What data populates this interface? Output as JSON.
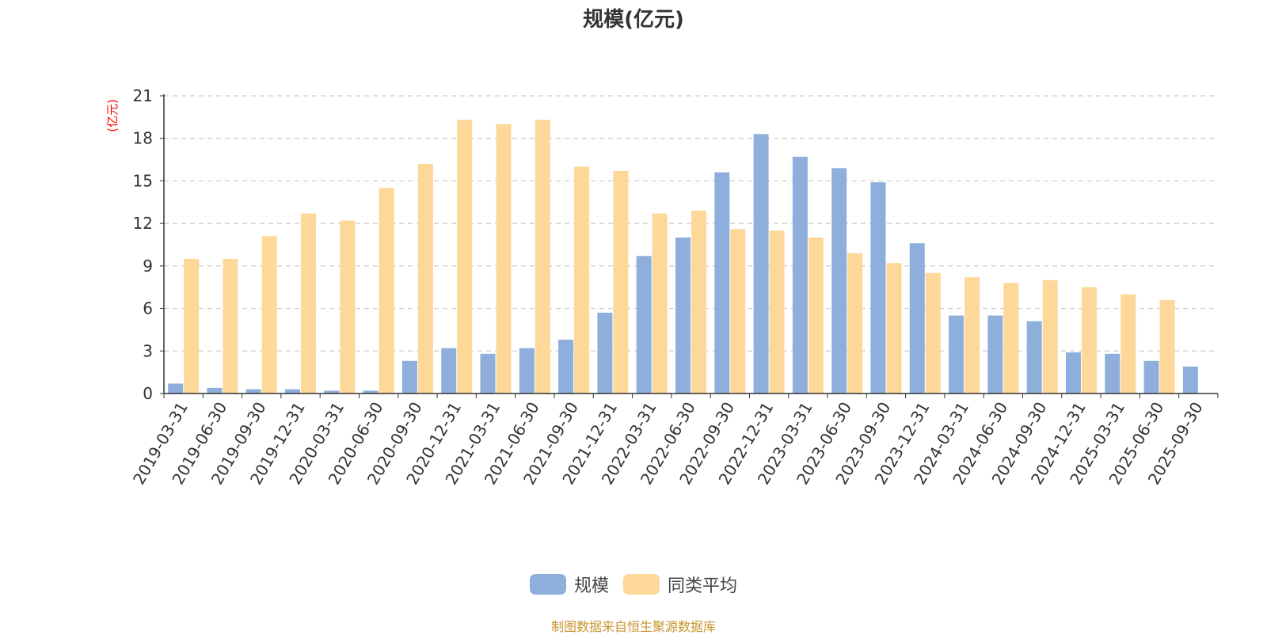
{
  "chart_data": {
    "type": "bar",
    "title": "规模(亿元)",
    "ylabel": "(亿元)",
    "ylim": [
      0,
      21
    ],
    "yticks": [
      0,
      3,
      6,
      9,
      12,
      15,
      18,
      21
    ],
    "grid": true,
    "legend_position": "bottom",
    "categories": [
      "2019-03-31",
      "2019-06-30",
      "2019-09-30",
      "2019-12-31",
      "2020-03-31",
      "2020-06-30",
      "2020-09-30",
      "2020-12-31",
      "2021-03-31",
      "2021-06-30",
      "2021-09-30",
      "2021-12-31",
      "2022-03-31",
      "2022-06-30",
      "2022-09-30",
      "2022-12-31",
      "2023-03-31",
      "2023-06-30",
      "2023-09-30",
      "2023-12-31",
      "2024-03-31",
      "2024-06-30",
      "2024-09-30",
      "2024-12-31",
      "2025-03-31",
      "2025-06-30",
      "2025-09-30"
    ],
    "series": [
      {
        "name": "规模",
        "color": "#8eaedb",
        "values": [
          0.7,
          0.4,
          0.3,
          0.3,
          0.2,
          0.2,
          2.3,
          3.2,
          2.8,
          3.2,
          3.8,
          5.7,
          9.7,
          11.0,
          15.6,
          18.3,
          16.7,
          15.9,
          14.9,
          10.6,
          5.5,
          5.5,
          5.1,
          2.9,
          2.8,
          2.3,
          1.9
        ]
      },
      {
        "name": "同类平均",
        "color": "#fdd898",
        "values": [
          9.5,
          9.5,
          11.1,
          12.7,
          12.2,
          14.5,
          16.2,
          19.3,
          19.0,
          19.3,
          16.0,
          15.7,
          12.7,
          12.9,
          11.6,
          11.5,
          11.0,
          9.9,
          9.2,
          8.5,
          8.2,
          7.8,
          8.0,
          7.5,
          7.0,
          6.6,
          null
        ]
      }
    ]
  },
  "legend": {
    "items": [
      {
        "label": "规模",
        "color": "#8eaedb"
      },
      {
        "label": "同类平均",
        "color": "#fdd898"
      }
    ]
  },
  "source_note": "制图数据来自恒生聚源数据库"
}
